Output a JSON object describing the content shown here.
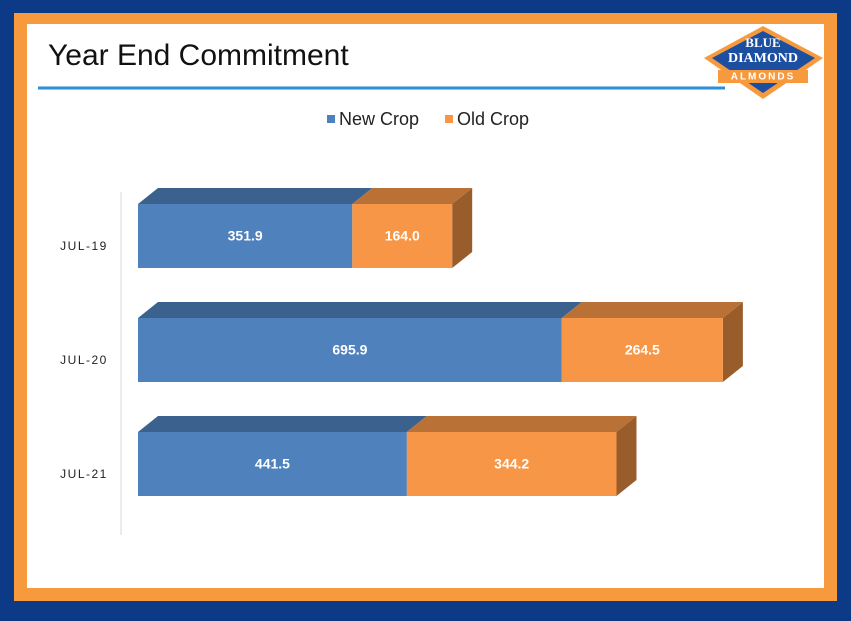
{
  "logo": {
    "line1": "BLUE",
    "line2": "DIAMOND",
    "line3": "ALMONDS"
  },
  "chart_data": {
    "type": "bar",
    "orientation": "horizontal",
    "stacked": true,
    "three_d": true,
    "title": "Year End Commitment",
    "legend": "top",
    "categories": [
      "JUL-19",
      "JUL-20",
      "JUL-21"
    ],
    "series": [
      {
        "name": "New Crop",
        "color": "#4f81bd",
        "values": [
          351.9,
          695.9,
          441.5
        ],
        "value_labels": [
          "351.9",
          "695.9",
          "441.5"
        ]
      },
      {
        "name": "Old Crop",
        "color": "#f79646",
        "values": [
          164.0,
          264.5,
          344.2
        ],
        "value_labels": [
          "164.0",
          "264.5",
          "344.2"
        ]
      }
    ]
  }
}
